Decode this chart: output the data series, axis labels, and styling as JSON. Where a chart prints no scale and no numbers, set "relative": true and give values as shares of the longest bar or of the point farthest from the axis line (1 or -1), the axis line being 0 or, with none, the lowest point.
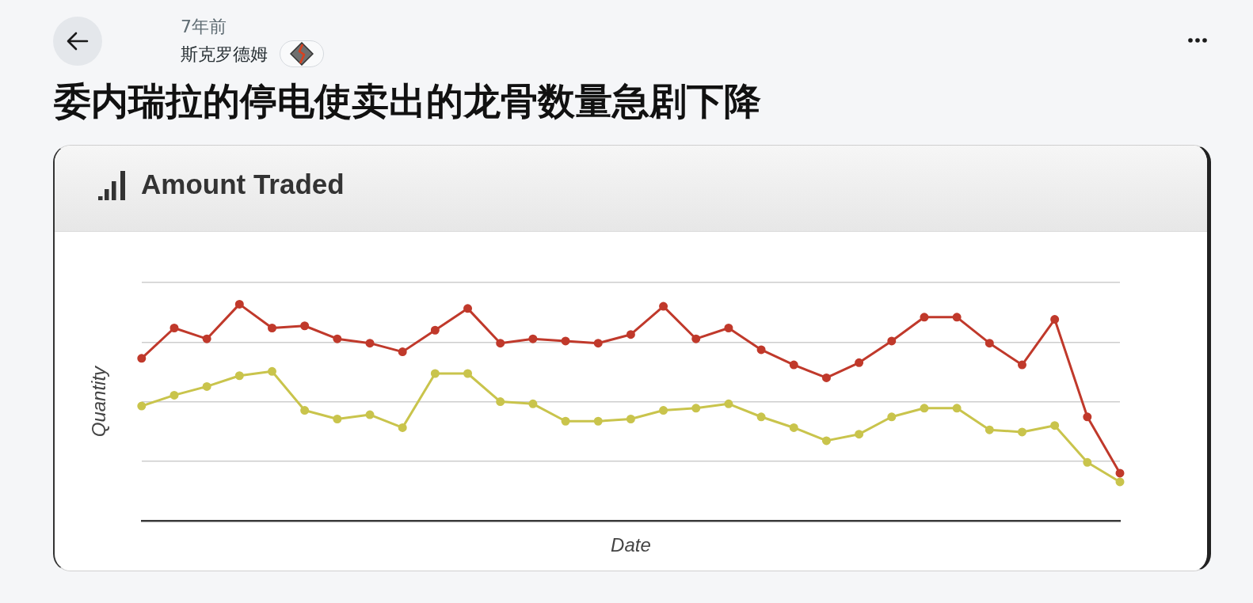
{
  "chart_data": {
    "type": "line",
    "title": "委内瑞拉的停电使卖出的龙骨数量急剧下降",
    "subtitle": "Amount Traded",
    "xlabel": "Date",
    "ylabel": "Quantity",
    "annotations": [
      "7年前",
      "斯克罗德姆"
    ],
    "relative": true,
    "categories": [
      null,
      null,
      null,
      null,
      null,
      null,
      null,
      null,
      null,
      null,
      null,
      null,
      null,
      null,
      null,
      null,
      null,
      null,
      null,
      null,
      null,
      null,
      null,
      null,
      null,
      null,
      null,
      null,
      null,
      null,
      null
    ],
    "series": [
      {
        "color": "#c0392b",
        "values": [
          0.75,
          0.89,
          0.84,
          1,
          0.89,
          0.9,
          0.84,
          0.82,
          0.78,
          0.88,
          0.98,
          0.82,
          0.84,
          0.83,
          0.82,
          0.86,
          0.99,
          0.84,
          0.89,
          0.79,
          0.72,
          0.66,
          0.73,
          0.83,
          0.94,
          0.94,
          0.82,
          0.72,
          0.93,
          0.48,
          0.22
        ]
      },
      {
        "color": "#c9c44c",
        "values": [
          0.53,
          0.58,
          0.62,
          0.67,
          0.69,
          0.51,
          0.47,
          0.49,
          0.43,
          0.68,
          0.68,
          0.55,
          0.54,
          0.46,
          0.46,
          0.47,
          0.51,
          0.52,
          0.54,
          0.48,
          0.43,
          0.37,
          0.4,
          0.48,
          0.52,
          0.52,
          0.42,
          0.41,
          0.44,
          0.27,
          0.18
        ]
      }
    ],
    "grid": "y",
    "marker": "circle",
    "line_style": "solid"
  }
}
